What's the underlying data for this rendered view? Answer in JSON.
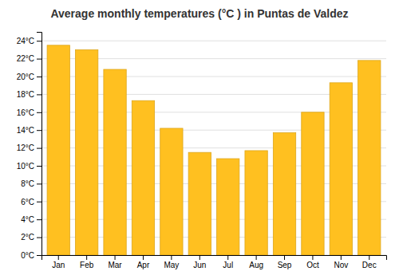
{
  "chart_data": {
    "type": "bar",
    "title": "Average monthly temperatures (°C ) in Puntas de Valdez",
    "categories": [
      "Jan",
      "Feb",
      "Mar",
      "Apr",
      "May",
      "Jun",
      "Jul",
      "Aug",
      "Sep",
      "Oct",
      "Nov",
      "Dec"
    ],
    "values": [
      23.5,
      23.0,
      20.8,
      17.3,
      14.2,
      11.5,
      10.8,
      11.7,
      13.7,
      16.0,
      19.3,
      21.8
    ],
    "color": "#FFC020",
    "ylim": [
      0,
      25
    ],
    "yticks": [
      {
        "value": 0,
        "label": "0°C"
      },
      {
        "value": 2,
        "label": "2°C"
      },
      {
        "value": 4,
        "label": "4°C"
      },
      {
        "value": 6,
        "label": "6°C"
      },
      {
        "value": 8,
        "label": "8°C"
      },
      {
        "value": 10,
        "label": "10°C"
      },
      {
        "value": 12,
        "label": "12°C"
      },
      {
        "value": 14,
        "label": "14°C"
      },
      {
        "value": 16,
        "label": "16°C"
      },
      {
        "value": 18,
        "label": "18°C"
      },
      {
        "value": 20,
        "label": "20°C"
      },
      {
        "value": 22,
        "label": "22°C"
      },
      {
        "value": 24,
        "label": "24°C"
      }
    ],
    "grid": true
  }
}
